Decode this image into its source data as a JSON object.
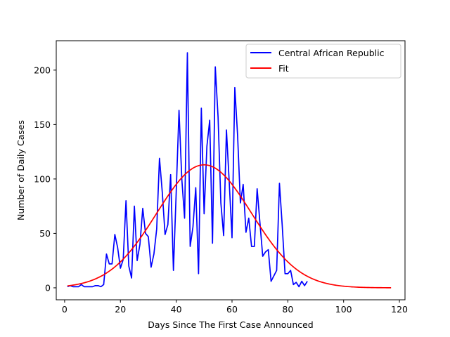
{
  "chart_data": {
    "type": "line",
    "title": "",
    "xlabel": "Days Since The First Case Announced",
    "ylabel": "Number of Daily Cases",
    "xlim": [
      -3,
      122
    ],
    "ylim": [
      -11,
      227
    ],
    "xticks": [
      0,
      20,
      40,
      60,
      80,
      100,
      120
    ],
    "yticks": [
      0,
      50,
      100,
      150,
      200
    ],
    "grid": false,
    "legend_position": "top-right",
    "series": [
      {
        "name": "Central African Republic",
        "color": "#0000ff",
        "x": [
          1,
          2,
          3,
          4,
          5,
          6,
          7,
          8,
          9,
          10,
          11,
          12,
          13,
          14,
          15,
          16,
          17,
          18,
          19,
          20,
          21,
          22,
          23,
          24,
          25,
          26,
          27,
          28,
          29,
          30,
          31,
          32,
          33,
          34,
          35,
          36,
          37,
          38,
          39,
          40,
          41,
          42,
          43,
          44,
          45,
          46,
          47,
          48,
          49,
          50,
          51,
          52,
          53,
          54,
          55,
          56,
          57,
          58,
          59,
          60,
          61,
          62,
          63,
          64,
          65,
          66,
          67,
          68,
          69,
          70,
          71,
          72,
          73,
          74,
          75,
          76,
          77,
          78,
          79,
          80,
          81,
          82,
          83,
          84,
          85,
          86,
          87
        ],
        "y": [
          1,
          2,
          1,
          1,
          1,
          3,
          1,
          1,
          1,
          1,
          2,
          2,
          1,
          3,
          31,
          22,
          22,
          49,
          37,
          18,
          26,
          80,
          20,
          9,
          75,
          25,
          40,
          73,
          50,
          47,
          19,
          31,
          54,
          119,
          88,
          49,
          58,
          104,
          16,
          88,
          163,
          100,
          64,
          216,
          38,
          56,
          92,
          13,
          165,
          68,
          130,
          154,
          41,
          203,
          157,
          78,
          48,
          145,
          97,
          46,
          184,
          140,
          78,
          95,
          51,
          64,
          38,
          38,
          91,
          60,
          29,
          33,
          35,
          6,
          11,
          16,
          96,
          57,
          13,
          13,
          16,
          3,
          5,
          1,
          6,
          2,
          6
        ]
      },
      {
        "name": "Fit",
        "color": "#ff0000",
        "x_range": [
          1,
          117
        ],
        "model": "gaussian",
        "peak": 113,
        "center": 50,
        "sigma": 17
      }
    ]
  }
}
